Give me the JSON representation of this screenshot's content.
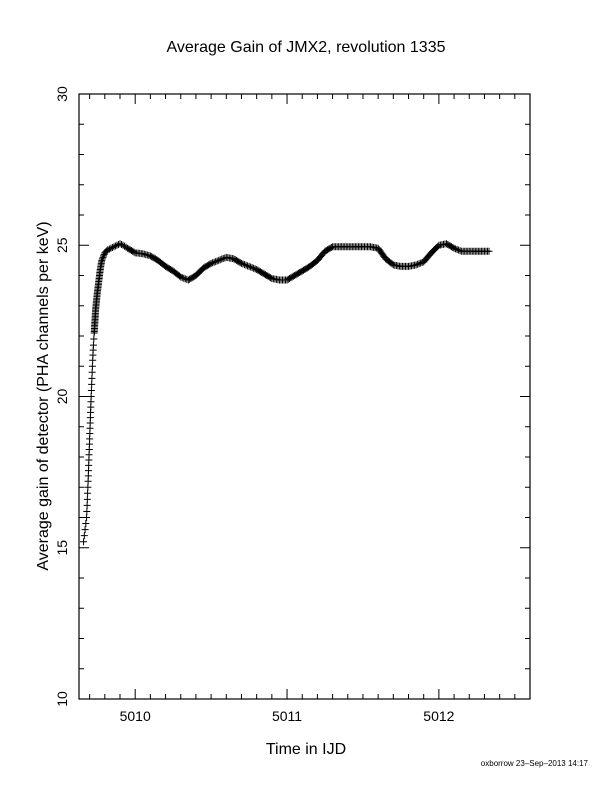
{
  "chart_data": {
    "type": "scatter",
    "title": "Average Gain of JMX2, revolution 1335",
    "xlabel": "Time in IJD",
    "ylabel": "Average gain of detector (PHA channels per keV)",
    "xlim": [
      5009.63,
      5012.6
    ],
    "ylim": [
      10,
      30
    ],
    "xticks": [
      5010,
      5011,
      5012
    ],
    "xtick_labels": [
      "5010",
      "5011",
      "5012"
    ],
    "yticks": [
      10,
      15,
      20,
      25,
      30
    ],
    "ytick_labels": [
      "10",
      "15",
      "20",
      "25",
      "30"
    ],
    "marker": "plus",
    "grid": false,
    "footer": "oxborrow 23–Sep–2013 14:17",
    "series": [
      {
        "x": [
          5009.66,
          5009.67,
          5009.68,
          5009.685,
          5009.69,
          5009.695,
          5009.7,
          5009.705,
          5009.71,
          5009.715,
          5009.72,
          5009.725,
          5009.73,
          5009.735,
          5009.74,
          5009.75,
          5009.76,
          5009.77,
          5009.78,
          5009.8,
          5009.82,
          5009.84,
          5009.86,
          5009.88,
          5009.9,
          5009.92,
          5009.95,
          5010.0,
          5010.05,
          5010.1,
          5010.15,
          5010.2,
          5010.25,
          5010.3,
          5010.35,
          5010.4,
          5010.45,
          5010.5,
          5010.55,
          5010.6,
          5010.65,
          5010.7,
          5010.75,
          5010.8,
          5010.85,
          5010.9,
          5010.95,
          5011.0,
          5011.05,
          5011.1,
          5011.15,
          5011.2,
          5011.25,
          5011.3,
          5011.35,
          5011.4,
          5011.45,
          5011.5,
          5011.55,
          5011.6,
          5011.65,
          5011.7,
          5011.75,
          5011.8,
          5011.85,
          5011.9,
          5011.95,
          5012.0,
          5012.05,
          5012.1,
          5012.15,
          5012.2,
          5012.25,
          5012.3,
          5012.33
        ],
        "y": [
          15.2,
          15.6,
          16.0,
          16.6,
          17.2,
          17.9,
          18.6,
          19.3,
          20.0,
          20.6,
          21.2,
          21.7,
          22.1,
          22.5,
          22.9,
          23.4,
          23.8,
          24.2,
          24.5,
          24.75,
          24.85,
          24.9,
          24.95,
          25.0,
          25.05,
          25.0,
          24.9,
          24.75,
          24.72,
          24.65,
          24.5,
          24.3,
          24.15,
          23.95,
          23.85,
          24.0,
          24.25,
          24.4,
          24.5,
          24.6,
          24.55,
          24.4,
          24.3,
          24.2,
          24.05,
          23.9,
          23.85,
          23.85,
          24.0,
          24.15,
          24.3,
          24.5,
          24.8,
          24.95,
          24.95,
          24.95,
          24.95,
          24.95,
          24.95,
          24.9,
          24.55,
          24.35,
          24.3,
          24.3,
          24.35,
          24.45,
          24.75,
          25.0,
          25.05,
          24.9,
          24.8,
          24.8,
          24.8,
          24.8,
          24.8
        ]
      }
    ]
  }
}
